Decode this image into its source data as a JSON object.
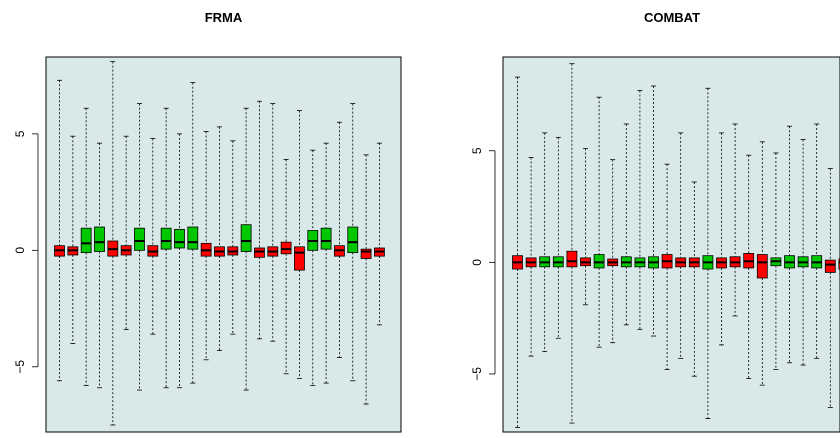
{
  "colors": {
    "panel_background": "#d9e8e8",
    "box_red": "#ff0000",
    "box_green": "#00c800",
    "stroke": "#000000"
  },
  "chart_data": [
    {
      "type": "box",
      "title": "FRMA",
      "xlabel": "",
      "ylabel": "",
      "ylim": [
        -7.8,
        8.3
      ],
      "y_ticks": [
        -5,
        0,
        5
      ],
      "y_tick_labels": [
        "−5",
        "0",
        "5"
      ],
      "grid": false,
      "boxes": [
        {
          "color": "red",
          "min": -5.6,
          "q1": -0.25,
          "median": 0.0,
          "q3": 0.2,
          "max": 7.3
        },
        {
          "color": "red",
          "min": -4.0,
          "q1": -0.2,
          "median": 0.0,
          "q3": 0.15,
          "max": 4.9
        },
        {
          "color": "green",
          "min": -5.8,
          "q1": -0.1,
          "median": 0.3,
          "q3": 0.95,
          "max": 6.1
        },
        {
          "color": "green",
          "min": -5.9,
          "q1": -0.05,
          "median": 0.35,
          "q3": 1.0,
          "max": 4.6
        },
        {
          "color": "red",
          "min": -7.5,
          "q1": -0.25,
          "median": 0.05,
          "q3": 0.4,
          "max": 8.1
        },
        {
          "color": "red",
          "min": -3.4,
          "q1": -0.2,
          "median": 0.0,
          "q3": 0.2,
          "max": 4.9
        },
        {
          "color": "green",
          "min": -6.0,
          "q1": 0.0,
          "median": 0.4,
          "q3": 0.95,
          "max": 6.3
        },
        {
          "color": "red",
          "min": -3.6,
          "q1": -0.25,
          "median": -0.05,
          "q3": 0.2,
          "max": 4.8
        },
        {
          "color": "green",
          "min": -5.9,
          "q1": 0.05,
          "median": 0.4,
          "q3": 0.95,
          "max": 6.1
        },
        {
          "color": "green",
          "min": -5.9,
          "q1": 0.1,
          "median": 0.35,
          "q3": 0.9,
          "max": 5.0
        },
        {
          "color": "green",
          "min": -5.7,
          "q1": 0.05,
          "median": 0.35,
          "q3": 1.0,
          "max": 7.2
        },
        {
          "color": "red",
          "min": -4.7,
          "q1": -0.25,
          "median": 0.0,
          "q3": 0.3,
          "max": 5.1
        },
        {
          "color": "red",
          "min": -4.3,
          "q1": -0.25,
          "median": -0.05,
          "q3": 0.15,
          "max": 5.3
        },
        {
          "color": "red",
          "min": -3.6,
          "q1": -0.2,
          "median": -0.05,
          "q3": 0.15,
          "max": 4.7
        },
        {
          "color": "green",
          "min": -6.0,
          "q1": -0.05,
          "median": 0.4,
          "q3": 1.1,
          "max": 6.1
        },
        {
          "color": "red",
          "min": -3.8,
          "q1": -0.3,
          "median": -0.05,
          "q3": 0.1,
          "max": 6.4
        },
        {
          "color": "red",
          "min": -3.9,
          "q1": -0.25,
          "median": -0.05,
          "q3": 0.15,
          "max": 6.3
        },
        {
          "color": "red",
          "min": -5.3,
          "q1": -0.15,
          "median": 0.05,
          "q3": 0.35,
          "max": 3.9
        },
        {
          "color": "red",
          "min": -5.5,
          "q1": -0.85,
          "median": -0.1,
          "q3": 0.15,
          "max": 6.0
        },
        {
          "color": "green",
          "min": -5.8,
          "q1": 0.0,
          "median": 0.4,
          "q3": 0.85,
          "max": 4.3
        },
        {
          "color": "green",
          "min": -5.7,
          "q1": 0.05,
          "median": 0.4,
          "q3": 0.95,
          "max": 4.6
        },
        {
          "color": "red",
          "min": -4.6,
          "q1": -0.25,
          "median": 0.0,
          "q3": 0.2,
          "max": 5.5
        },
        {
          "color": "green",
          "min": -5.6,
          "q1": -0.1,
          "median": 0.35,
          "q3": 1.0,
          "max": 6.3
        },
        {
          "color": "red",
          "min": -6.6,
          "q1": -0.35,
          "median": -0.05,
          "q3": 0.05,
          "max": 4.1
        },
        {
          "color": "red",
          "min": -3.2,
          "q1": -0.25,
          "median": -0.05,
          "q3": 0.1,
          "max": 4.6
        }
      ]
    },
    {
      "type": "box",
      "title": "COMBAT",
      "xlabel": "",
      "ylabel": "",
      "ylim": [
        -7.6,
        9.2
      ],
      "y_ticks": [
        -5,
        0,
        5
      ],
      "y_tick_labels": [
        "−5",
        "0",
        "5"
      ],
      "grid": false,
      "boxes": [
        {
          "color": "red",
          "min": -7.4,
          "q1": -0.3,
          "median": 0.0,
          "q3": 0.3,
          "max": 8.3
        },
        {
          "color": "red",
          "min": -4.2,
          "q1": -0.2,
          "median": 0.0,
          "q3": 0.2,
          "max": 4.7
        },
        {
          "color": "green",
          "min": -4.0,
          "q1": -0.2,
          "median": 0.0,
          "q3": 0.25,
          "max": 5.8
        },
        {
          "color": "green",
          "min": -3.4,
          "q1": -0.2,
          "median": 0.0,
          "q3": 0.25,
          "max": 5.6
        },
        {
          "color": "red",
          "min": -7.2,
          "q1": -0.2,
          "median": 0.05,
          "q3": 0.5,
          "max": 8.9
        },
        {
          "color": "red",
          "min": -1.9,
          "q1": -0.15,
          "median": 0.0,
          "q3": 0.2,
          "max": 5.1
        },
        {
          "color": "green",
          "min": -3.8,
          "q1": -0.25,
          "median": 0.0,
          "q3": 0.35,
          "max": 7.4
        },
        {
          "color": "red",
          "min": -3.6,
          "q1": -0.15,
          "median": 0.0,
          "q3": 0.15,
          "max": 4.6
        },
        {
          "color": "green",
          "min": -2.8,
          "q1": -0.2,
          "median": 0.0,
          "q3": 0.25,
          "max": 6.2
        },
        {
          "color": "green",
          "min": -3.0,
          "q1": -0.2,
          "median": 0.0,
          "q3": 0.2,
          "max": 7.7
        },
        {
          "color": "green",
          "min": -3.3,
          "q1": -0.25,
          "median": 0.0,
          "q3": 0.25,
          "max": 7.9
        },
        {
          "color": "red",
          "min": -4.8,
          "q1": -0.25,
          "median": 0.05,
          "q3": 0.35,
          "max": 4.4
        },
        {
          "color": "red",
          "min": -4.3,
          "q1": -0.2,
          "median": 0.0,
          "q3": 0.2,
          "max": 5.8
        },
        {
          "color": "red",
          "min": -5.1,
          "q1": -0.2,
          "median": 0.0,
          "q3": 0.2,
          "max": 3.6
        },
        {
          "color": "green",
          "min": -7.0,
          "q1": -0.3,
          "median": 0.0,
          "q3": 0.3,
          "max": 7.8
        },
        {
          "color": "red",
          "min": -3.7,
          "q1": -0.25,
          "median": 0.0,
          "q3": 0.2,
          "max": 5.8
        },
        {
          "color": "red",
          "min": -2.4,
          "q1": -0.2,
          "median": 0.0,
          "q3": 0.25,
          "max": 6.2
        },
        {
          "color": "red",
          "min": -5.2,
          "q1": -0.25,
          "median": 0.05,
          "q3": 0.4,
          "max": 4.8
        },
        {
          "color": "red",
          "min": -5.5,
          "q1": -0.7,
          "median": 0.0,
          "q3": 0.35,
          "max": 5.4
        },
        {
          "color": "green",
          "min": -4.8,
          "q1": -0.15,
          "median": 0.05,
          "q3": 0.2,
          "max": 4.9
        },
        {
          "color": "green",
          "min": -4.5,
          "q1": -0.25,
          "median": 0.0,
          "q3": 0.3,
          "max": 6.1
        },
        {
          "color": "green",
          "min": -4.6,
          "q1": -0.2,
          "median": 0.0,
          "q3": 0.25,
          "max": 5.5
        },
        {
          "color": "green",
          "min": -4.3,
          "q1": -0.25,
          "median": 0.0,
          "q3": 0.3,
          "max": 6.2
        },
        {
          "color": "red",
          "min": -6.5,
          "q1": -0.45,
          "median": -0.1,
          "q3": 0.1,
          "max": 4.2
        },
        {
          "color": "red",
          "min": -3.6,
          "q1": -0.3,
          "median": 0.0,
          "q3": 0.15,
          "max": 4.1
        }
      ]
    }
  ]
}
